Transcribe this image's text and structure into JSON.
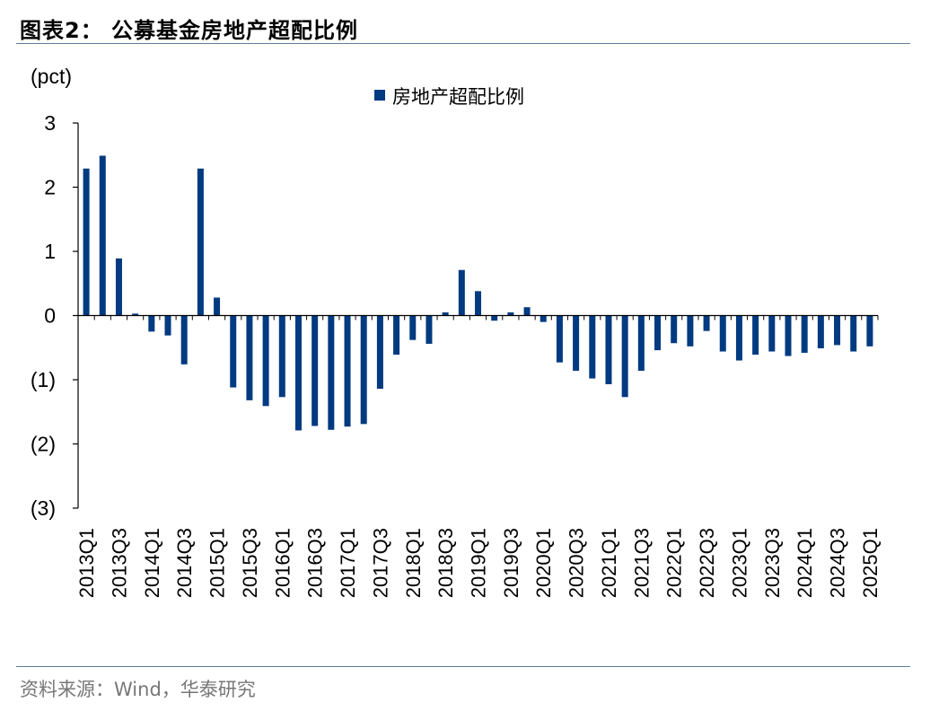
{
  "header": {
    "title": "图表2：  公募基金房地产超配比例"
  },
  "footer": {
    "source": "资料来源：Wind，华泰研究"
  },
  "colors": {
    "bar": "#003a80",
    "rule": "#5f7e9a",
    "source_text": "#777777"
  },
  "chart_data": {
    "type": "bar",
    "unit_label": "(pct)",
    "ylim": [
      -3,
      3
    ],
    "yticks": [
      3,
      2,
      1,
      0,
      -1,
      -2,
      -3
    ],
    "ytick_labels": [
      "3",
      "2",
      "1",
      "0",
      "(1)",
      "(2)",
      "(3)"
    ],
    "grid": false,
    "legend_position": "top-center",
    "series": [
      {
        "name": "房地产超配比例",
        "color": "#003a80",
        "values": [
          2.29,
          2.49,
          0.89,
          0.03,
          -0.25,
          -0.31,
          -0.76,
          2.29,
          0.28,
          -1.12,
          -1.32,
          -1.41,
          -1.27,
          -1.79,
          -1.72,
          -1.78,
          -1.73,
          -1.69,
          -1.14,
          -0.61,
          -0.38,
          -0.44,
          0.05,
          0.71,
          0.38,
          -0.08,
          0.05,
          0.13,
          -0.1,
          -0.73,
          -0.86,
          -0.98,
          -1.07,
          -1.27,
          -0.86,
          -0.54,
          -0.43,
          -0.48,
          -0.24,
          -0.56,
          -0.7,
          -0.61,
          -0.56,
          -0.63,
          -0.58,
          -0.51,
          -0.46,
          -0.56,
          -0.48
        ]
      }
    ],
    "categories": [
      "2013Q1",
      "2013Q2",
      "2013Q3",
      "2013Q4",
      "2014Q1",
      "2014Q2",
      "2014Q3",
      "2014Q4",
      "2015Q1",
      "2015Q2",
      "2015Q3",
      "2015Q4",
      "2016Q1",
      "2016Q2",
      "2016Q3",
      "2016Q4",
      "2017Q1",
      "2017Q2",
      "2017Q3",
      "2017Q4",
      "2018Q1",
      "2018Q2",
      "2018Q3",
      "2018Q4",
      "2019Q1",
      "2019Q2",
      "2019Q3",
      "2019Q4",
      "2020Q1",
      "2020Q2",
      "2020Q3",
      "2020Q4",
      "2021Q1",
      "2021Q2",
      "2021Q3",
      "2021Q4",
      "2022Q1",
      "2022Q2",
      "2022Q3",
      "2022Q4",
      "2023Q1",
      "2023Q2",
      "2023Q3",
      "2023Q4",
      "2024Q1",
      "2024Q2",
      "2024Q3",
      "2024Q4",
      "2025Q1"
    ],
    "x_tick_labels": [
      "2013Q1",
      "2013Q3",
      "2014Q1",
      "2014Q3",
      "2015Q1",
      "2015Q3",
      "2016Q1",
      "2016Q3",
      "2017Q1",
      "2017Q3",
      "2018Q1",
      "2018Q3",
      "2019Q1",
      "2019Q3",
      "2020Q1",
      "2020Q3",
      "2021Q1",
      "2021Q3",
      "2022Q1",
      "2022Q3",
      "2023Q1",
      "2023Q3",
      "2024Q1",
      "2024Q3",
      "2025Q1"
    ]
  }
}
